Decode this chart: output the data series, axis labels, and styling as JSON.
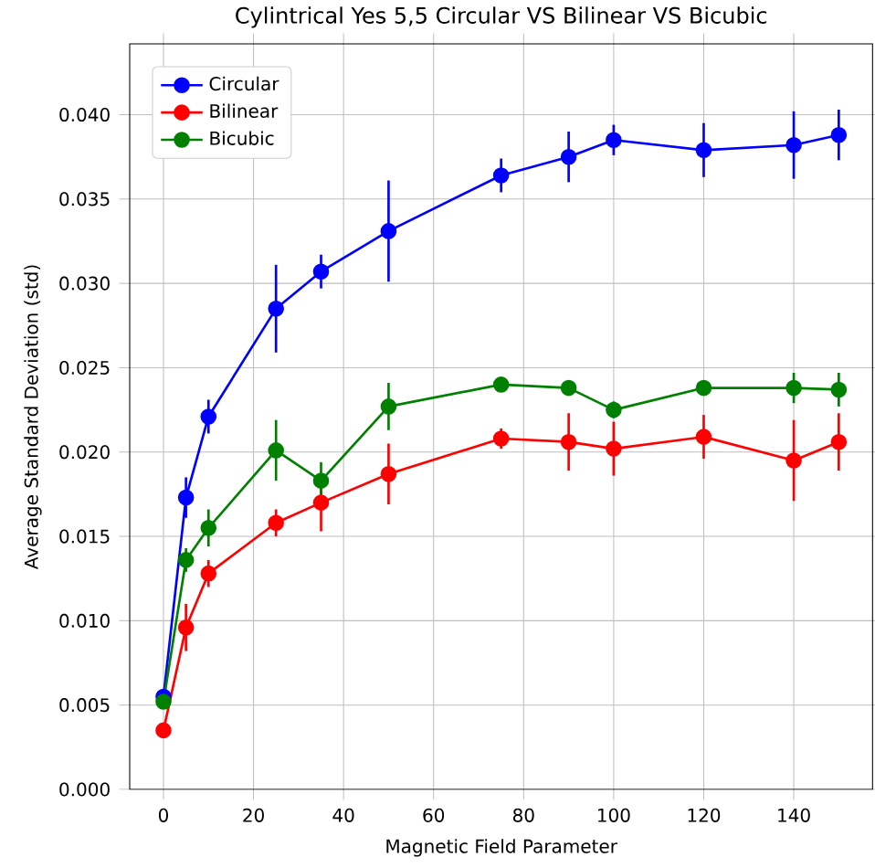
{
  "chart_data": {
    "type": "line",
    "title": "Cylintrical Yes 5,5 Circular VS Bilinear VS Bicubic",
    "xlabel": "Magnetic Field Parameter",
    "ylabel": "Average Standard Deviation (std)",
    "x": [
      0,
      5,
      10,
      25,
      35,
      50,
      75,
      90,
      100,
      120,
      140,
      150
    ],
    "series": [
      {
        "name": "Circular",
        "color": "#0000ff",
        "values": [
          0.0055,
          0.0173,
          0.0221,
          0.0285,
          0.0307,
          0.0331,
          0.0364,
          0.0375,
          0.0385,
          0.0379,
          0.0382,
          0.0388
        ],
        "errors": [
          0.0002,
          0.0012,
          0.001,
          0.0026,
          0.001,
          0.003,
          0.001,
          0.0015,
          0.0009,
          0.0016,
          0.002,
          0.0015
        ]
      },
      {
        "name": "Bilinear",
        "color": "#ff0000",
        "values": [
          0.0035,
          0.0096,
          0.0128,
          0.0158,
          0.017,
          0.0187,
          0.0208,
          0.0206,
          0.0202,
          0.0209,
          0.0195,
          0.0206
        ],
        "errors": [
          0.0002,
          0.0014,
          0.0008,
          0.0008,
          0.0017,
          0.0018,
          0.0006,
          0.0017,
          0.0016,
          0.0013,
          0.0024,
          0.0017
        ]
      },
      {
        "name": "Bicubic",
        "color": "#008000",
        "values": [
          0.0052,
          0.0136,
          0.0155,
          0.0201,
          0.0183,
          0.0227,
          0.024,
          0.0238,
          0.0225,
          0.0238,
          0.0238,
          0.0237
        ],
        "errors": [
          0.0002,
          0.0007,
          0.0011,
          0.0018,
          0.0011,
          0.0014,
          0.0003,
          0.0002,
          0.0005,
          0.0003,
          0.0009,
          0.001
        ]
      }
    ],
    "xlim": [
      -7.5,
      157.5
    ],
    "ylim": [
      0,
      0.0442
    ],
    "xticks": [
      0,
      20,
      40,
      60,
      80,
      100,
      120,
      140
    ],
    "yticks": [
      {
        "value": 0,
        "label": "0.000"
      },
      {
        "value": 0.005,
        "label": "0.005"
      },
      {
        "value": 0.01,
        "label": "0.010"
      },
      {
        "value": 0.015,
        "label": "0.015"
      },
      {
        "value": 0.02,
        "label": "0.020"
      },
      {
        "value": 0.025,
        "label": "0.025"
      },
      {
        "value": 0.03,
        "label": "0.030"
      },
      {
        "value": 0.035,
        "label": "0.035"
      },
      {
        "value": 0.04,
        "label": "0.040"
      }
    ],
    "grid": true,
    "legend": "top left",
    "marker": "circle",
    "line_style": "solid"
  }
}
